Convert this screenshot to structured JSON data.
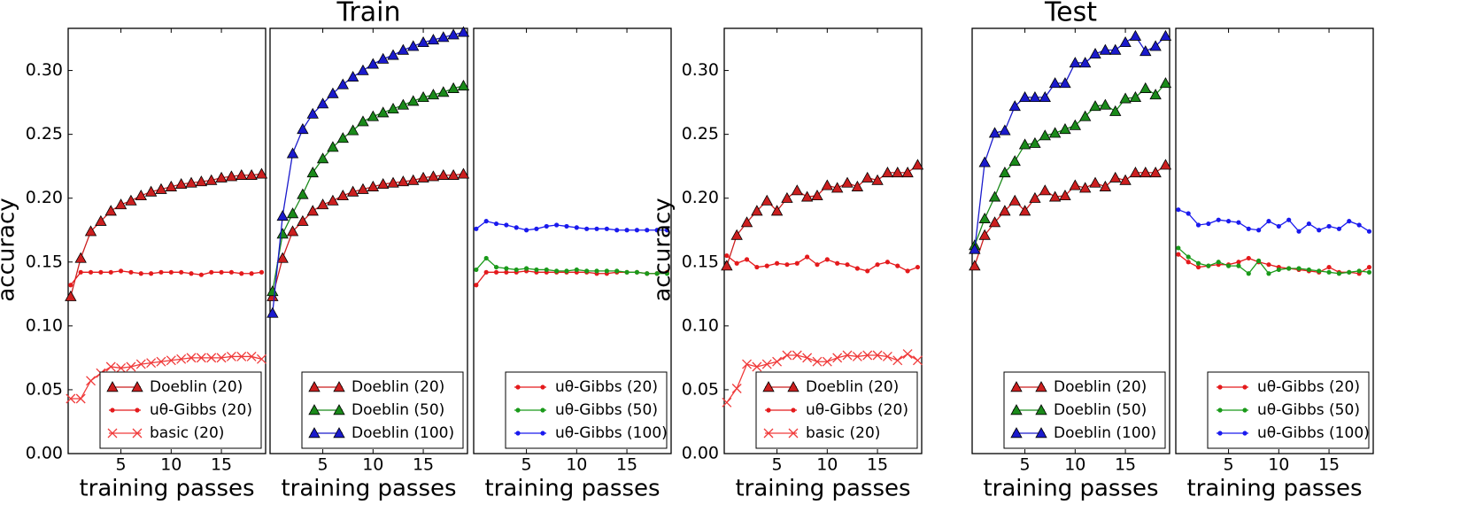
{
  "chart_data": [
    {
      "type": "line",
      "ylabel": "accuracy",
      "xlabel": "training passes",
      "legend": "lower right",
      "x": [
        0,
        1,
        2,
        3,
        4,
        5,
        6,
        7,
        8,
        9,
        10,
        11,
        12,
        13,
        14,
        15,
        16,
        17,
        18,
        19
      ],
      "xlim": [
        -0.25,
        19.4
      ],
      "ylim": [
        0,
        0.333
      ],
      "xticks": [
        5,
        10,
        15
      ],
      "yticks": [
        {
          "value": 0,
          "label": "0.00"
        },
        {
          "value": 0.05,
          "label": "0.05"
        },
        {
          "value": 0.1,
          "label": "0.10"
        },
        {
          "value": 0.15,
          "label": "0.15"
        },
        {
          "value": 0.2,
          "label": "0.20"
        },
        {
          "value": 0.25,
          "label": "0.25"
        },
        {
          "value": 0.3,
          "label": "0.30"
        }
      ],
      "series": [
        {
          "name": "Doeblin (20)",
          "color": "#cc1f1f",
          "marker": "triangle",
          "values": [
            0.123,
            0.153,
            0.174,
            0.182,
            0.19,
            0.195,
            0.198,
            0.202,
            0.205,
            0.207,
            0.209,
            0.211,
            0.212,
            0.213,
            0.214,
            0.216,
            0.217,
            0.218,
            0.218,
            0.219
          ]
        },
        {
          "name": "uθ-Gibbs (20)",
          "color": "#e41a1c",
          "marker": "dot",
          "values": [
            0.132,
            0.142,
            0.142,
            0.142,
            0.142,
            0.143,
            0.142,
            0.141,
            0.141,
            0.142,
            0.142,
            0.142,
            0.141,
            0.14,
            0.142,
            0.142,
            0.142,
            0.141,
            0.141,
            0.142
          ]
        },
        {
          "name": "basic (20)",
          "color": "#f03a3a",
          "marker": "x",
          "values": [
            0.043,
            0.043,
            0.057,
            0.063,
            0.068,
            0.067,
            0.068,
            0.07,
            0.071,
            0.072,
            0.073,
            0.074,
            0.075,
            0.075,
            0.075,
            0.075,
            0.076,
            0.076,
            0.076,
            0.074
          ]
        }
      ]
    },
    {
      "type": "line",
      "title": "Train",
      "xlabel": "training passes",
      "legend": "lower right",
      "x": [
        0,
        1,
        2,
        3,
        4,
        5,
        6,
        7,
        8,
        9,
        10,
        11,
        12,
        13,
        14,
        15,
        16,
        17,
        18,
        19
      ],
      "xlim": [
        -0.25,
        19.4
      ],
      "ylim": [
        0,
        0.333
      ],
      "xticks": [
        5,
        10,
        15
      ],
      "series": [
        {
          "name": "Doeblin (20)",
          "color": "#cc1f1f",
          "marker": "triangle",
          "values": [
            0.123,
            0.153,
            0.174,
            0.182,
            0.19,
            0.195,
            0.198,
            0.202,
            0.205,
            0.207,
            0.209,
            0.211,
            0.212,
            0.213,
            0.214,
            0.216,
            0.217,
            0.218,
            0.218,
            0.219
          ]
        },
        {
          "name": "Doeblin (50)",
          "color": "#1a8a1a",
          "marker": "triangle",
          "values": [
            0.127,
            0.172,
            0.188,
            0.203,
            0.22,
            0.231,
            0.24,
            0.247,
            0.253,
            0.26,
            0.264,
            0.267,
            0.27,
            0.273,
            0.276,
            0.279,
            0.281,
            0.283,
            0.286,
            0.288
          ]
        },
        {
          "name": "Doeblin (100)",
          "color": "#1a1acc",
          "marker": "triangle",
          "values": [
            0.11,
            0.186,
            0.235,
            0.254,
            0.266,
            0.274,
            0.282,
            0.289,
            0.295,
            0.3,
            0.305,
            0.309,
            0.312,
            0.316,
            0.319,
            0.322,
            0.324,
            0.326,
            0.328,
            0.33
          ]
        }
      ]
    },
    {
      "type": "line",
      "xlabel": "training passes",
      "legend": "lower right",
      "x": [
        0,
        1,
        2,
        3,
        4,
        5,
        6,
        7,
        8,
        9,
        10,
        11,
        12,
        13,
        14,
        15,
        16,
        17,
        18,
        19
      ],
      "xlim": [
        -0.25,
        19.4
      ],
      "ylim": [
        0,
        0.333
      ],
      "xticks": [
        5,
        10,
        15
      ],
      "series": [
        {
          "name": "uθ-Gibbs (20)",
          "color": "#e41a1c",
          "marker": "dot",
          "values": [
            0.132,
            0.142,
            0.142,
            0.142,
            0.142,
            0.143,
            0.142,
            0.142,
            0.142,
            0.142,
            0.142,
            0.142,
            0.141,
            0.141,
            0.142,
            0.142,
            0.142,
            0.141,
            0.141,
            0.142
          ]
        },
        {
          "name": "uθ-Gibbs (50)",
          "color": "#1a9a1a",
          "marker": "dot",
          "values": [
            0.144,
            0.153,
            0.146,
            0.145,
            0.144,
            0.145,
            0.144,
            0.144,
            0.143,
            0.143,
            0.144,
            0.143,
            0.143,
            0.143,
            0.143,
            0.142,
            0.142,
            0.141,
            0.141,
            0.141
          ]
        },
        {
          "name": "uθ-Gibbs (100)",
          "color": "#1a1aee",
          "marker": "dot",
          "values": [
            0.176,
            0.182,
            0.18,
            0.179,
            0.177,
            0.175,
            0.176,
            0.178,
            0.179,
            0.178,
            0.177,
            0.176,
            0.176,
            0.176,
            0.175,
            0.175,
            0.175,
            0.175,
            0.175,
            0.175
          ]
        }
      ]
    },
    {
      "type": "line",
      "ylabel": "accuracy",
      "xlabel": "training passes",
      "legend": "lower right",
      "x": [
        0,
        1,
        2,
        3,
        4,
        5,
        6,
        7,
        8,
        9,
        10,
        11,
        12,
        13,
        14,
        15,
        16,
        17,
        18,
        19
      ],
      "xlim": [
        -0.25,
        19.4
      ],
      "ylim": [
        0,
        0.333
      ],
      "xticks": [
        5,
        10,
        15
      ],
      "yticks": [
        {
          "value": 0,
          "label": "0.00"
        },
        {
          "value": 0.05,
          "label": "0.05"
        },
        {
          "value": 0.1,
          "label": "0.10"
        },
        {
          "value": 0.15,
          "label": "0.15"
        },
        {
          "value": 0.2,
          "label": "0.20"
        },
        {
          "value": 0.25,
          "label": "0.25"
        },
        {
          "value": 0.3,
          "label": "0.30"
        }
      ],
      "series": [
        {
          "name": "Doeblin (20)",
          "color": "#cc1f1f",
          "marker": "triangle",
          "values": [
            0.147,
            0.171,
            0.181,
            0.19,
            0.198,
            0.19,
            0.2,
            0.206,
            0.201,
            0.202,
            0.21,
            0.208,
            0.212,
            0.209,
            0.216,
            0.214,
            0.22,
            0.22,
            0.22,
            0.226
          ]
        },
        {
          "name": "uθ-Gibbs (20)",
          "color": "#e41a1c",
          "marker": "dot",
          "values": [
            0.155,
            0.149,
            0.152,
            0.146,
            0.147,
            0.149,
            0.148,
            0.149,
            0.154,
            0.148,
            0.152,
            0.149,
            0.148,
            0.145,
            0.143,
            0.148,
            0.15,
            0.147,
            0.143,
            0.146
          ]
        },
        {
          "name": "basic (20)",
          "color": "#f03a3a",
          "marker": "x",
          "values": [
            0.04,
            0.051,
            0.07,
            0.068,
            0.07,
            0.072,
            0.077,
            0.077,
            0.075,
            0.072,
            0.072,
            0.075,
            0.077,
            0.076,
            0.077,
            0.077,
            0.076,
            0.073,
            0.078,
            0.073
          ]
        }
      ]
    },
    {
      "type": "line",
      "title": "Test",
      "xlabel": "training passes",
      "legend": "lower right",
      "x": [
        0,
        1,
        2,
        3,
        4,
        5,
        6,
        7,
        8,
        9,
        10,
        11,
        12,
        13,
        14,
        15,
        16,
        17,
        18,
        19
      ],
      "xlim": [
        -0.25,
        19.4
      ],
      "ylim": [
        0,
        0.333
      ],
      "xticks": [
        5,
        10,
        15
      ],
      "series": [
        {
          "name": "Doeblin (20)",
          "color": "#cc1f1f",
          "marker": "triangle",
          "values": [
            0.147,
            0.171,
            0.181,
            0.19,
            0.198,
            0.19,
            0.2,
            0.206,
            0.201,
            0.202,
            0.21,
            0.208,
            0.212,
            0.209,
            0.216,
            0.214,
            0.22,
            0.22,
            0.22,
            0.226
          ]
        },
        {
          "name": "Doeblin (50)",
          "color": "#1a8a1a",
          "marker": "triangle",
          "values": [
            0.163,
            0.184,
            0.201,
            0.22,
            0.229,
            0.242,
            0.243,
            0.249,
            0.251,
            0.254,
            0.257,
            0.264,
            0.272,
            0.273,
            0.268,
            0.278,
            0.279,
            0.286,
            0.281,
            0.29
          ]
        },
        {
          "name": "Doeblin (100)",
          "color": "#1a1acc",
          "marker": "triangle",
          "values": [
            0.16,
            0.228,
            0.251,
            0.253,
            0.272,
            0.279,
            0.279,
            0.279,
            0.29,
            0.29,
            0.306,
            0.306,
            0.313,
            0.316,
            0.316,
            0.322,
            0.327,
            0.315,
            0.319,
            0.327
          ]
        }
      ]
    },
    {
      "type": "line",
      "xlabel": "training passes",
      "legend": "lower right",
      "x": [
        0,
        1,
        2,
        3,
        4,
        5,
        6,
        7,
        8,
        9,
        10,
        11,
        12,
        13,
        14,
        15,
        16,
        17,
        18,
        19
      ],
      "xlim": [
        -0.25,
        19.4
      ],
      "ylim": [
        0,
        0.333
      ],
      "xticks": [
        5,
        10,
        15
      ],
      "series": [
        {
          "name": "uθ-Gibbs (20)",
          "color": "#e41a1c",
          "marker": "dot",
          "values": [
            0.156,
            0.15,
            0.146,
            0.147,
            0.148,
            0.148,
            0.15,
            0.153,
            0.15,
            0.148,
            0.146,
            0.145,
            0.144,
            0.143,
            0.142,
            0.146,
            0.142,
            0.142,
            0.141,
            0.146
          ]
        },
        {
          "name": "uθ-Gibbs (50)",
          "color": "#1a9a1a",
          "marker": "dot",
          "values": [
            0.161,
            0.154,
            0.149,
            0.147,
            0.15,
            0.147,
            0.147,
            0.141,
            0.151,
            0.141,
            0.144,
            0.145,
            0.145,
            0.144,
            0.143,
            0.142,
            0.141,
            0.142,
            0.143,
            0.142
          ]
        },
        {
          "name": "uθ-Gibbs (100)",
          "color": "#1a1aee",
          "marker": "dot",
          "values": [
            0.191,
            0.188,
            0.179,
            0.18,
            0.183,
            0.182,
            0.181,
            0.176,
            0.175,
            0.182,
            0.178,
            0.183,
            0.174,
            0.18,
            0.175,
            0.178,
            0.176,
            0.182,
            0.179,
            0.174
          ]
        }
      ]
    }
  ]
}
